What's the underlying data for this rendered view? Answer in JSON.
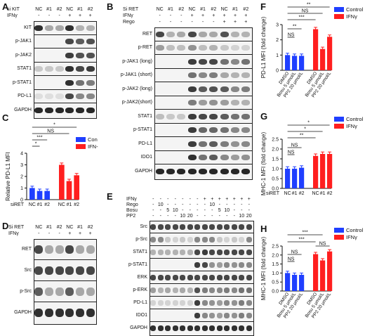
{
  "panels": {
    "A": {
      "letter": "A",
      "row1": [
        "si KIT",
        "NC",
        "#1",
        "#2",
        "NC",
        "#1",
        "#2"
      ],
      "row2": [
        "IFNγ",
        "-",
        "-",
        "-",
        "+",
        "+",
        "+"
      ],
      "blots": [
        "KIT",
        "p-JAK1",
        "p-JAK2",
        "STAT1",
        "p-STAT1",
        "PD-L1",
        "GAPDH"
      ]
    },
    "B": {
      "letter": "B",
      "row1": [
        "Si RET",
        "NC",
        "#1",
        "#2",
        "NC",
        "#1",
        "#2",
        "NC",
        "#1",
        "#2"
      ],
      "row2": [
        "IFNγ",
        "-",
        "-",
        "-",
        "+",
        "+",
        "+",
        "+",
        "+",
        "+"
      ],
      "row3": [
        "Rego",
        "-",
        "-",
        "-",
        "-",
        "-",
        "-",
        "+",
        "+",
        "+"
      ],
      "blots": [
        "RET",
        "p-RET",
        "p-JAK1 (long)",
        "p-JAK1 (short)",
        "p-JAK2 (long)",
        "p-JAK2(short)",
        "STAT1",
        "p-STAT1",
        "PD-L1",
        "IDO1",
        "GAPDH"
      ]
    },
    "C": {
      "letter": "C"
    },
    "D": {
      "letter": "D",
      "row1": [
        "Si RET",
        "NC",
        "#1",
        "#2",
        "NC",
        "#1",
        "#2"
      ],
      "row2": [
        "IFNγ",
        "-",
        "-",
        "-",
        "+",
        "+",
        "+"
      ],
      "blots": [
        "RET",
        "Src",
        "p-Src",
        "GAPDH"
      ]
    },
    "E": {
      "letter": "E",
      "row1": [
        "IFNγ",
        "-",
        "-",
        "-",
        "-",
        "-",
        "-",
        "-",
        "+",
        "+",
        "+",
        "+",
        "+",
        "+",
        "+"
      ],
      "row2": [
        "Rego",
        "-",
        "10",
        "-",
        "-",
        "-",
        "-",
        "-",
        "-",
        "10",
        "-",
        "-",
        "-",
        "-",
        "-"
      ],
      "row3": [
        "Bosu",
        "-",
        "-",
        "5",
        "10",
        "-",
        "-",
        "-",
        "-",
        "-",
        "5",
        "10",
        "-",
        "-",
        "-"
      ],
      "row4": [
        "PP2",
        "-",
        "-",
        "-",
        "-",
        "10",
        "20",
        "-",
        "-",
        "-",
        "-",
        "-",
        "-",
        "10",
        "20"
      ],
      "blots": [
        "Src",
        "p-Src",
        "STAT1",
        "p-STAT1",
        "ERK",
        "p-ERK",
        "PD-L1",
        "IDO1",
        "GAPDH"
      ]
    },
    "F": {
      "letter": "F"
    },
    "G": {
      "letter": "G"
    },
    "H": {
      "letter": "H"
    }
  },
  "chart_data": [
    {
      "panel": "C",
      "type": "bar",
      "ylabel": "Relative PD-L1 MFI",
      "xlabel": "siRET",
      "groups": [
        "NC",
        "#1",
        "#2",
        "NC",
        "#1",
        "#2"
      ],
      "series": [
        {
          "name": "Con",
          "color": "#1f3fff",
          "values": [
            1.0,
            0.75,
            0.75
          ]
        },
        {
          "name": "IFN-",
          "color": "#ff1f1f",
          "values": [
            3.0,
            1.6,
            2.1
          ]
        }
      ],
      "ylim": [
        0,
        4
      ],
      "yticks": [
        "0",
        "1",
        "2",
        "3",
        "4"
      ],
      "significance": [
        "*",
        "***",
        "NS",
        "*"
      ]
    },
    {
      "panel": "F",
      "type": "bar",
      "ylabel": "PD-L1 MFI (fold change)",
      "groups": [
        "DMSO",
        "Bosu 5 μmol/L",
        "PP2 20 μmol/L",
        "DMSO",
        "Bosu 5 μmol/L",
        "PP2 20 μmol/L"
      ],
      "series": [
        {
          "name": "Control",
          "color": "#1f3fff",
          "values": [
            1.0,
            0.95,
            0.95
          ]
        },
        {
          "name": "IFNγ",
          "color": "#ff1f1f",
          "values": [
            2.7,
            1.4,
            2.2
          ]
        }
      ],
      "ylim": [
        0,
        3
      ],
      "yticks": [
        "0",
        "1",
        "2",
        "3"
      ],
      "significance": [
        "NS",
        "**",
        "***",
        "NS",
        "**"
      ]
    },
    {
      "panel": "G",
      "type": "bar",
      "ylabel": "MHC-1 MFI (fold change)",
      "xlabel": "siRET",
      "groups": [
        "NC",
        "#1",
        "#2",
        "NC",
        "#1",
        "#2"
      ],
      "series": [
        {
          "name": "Control",
          "color": "#1f3fff",
          "values": [
            1.0,
            1.0,
            1.05
          ]
        },
        {
          "name": "IFNγ",
          "color": "#ff1f1f",
          "values": [
            1.65,
            1.75,
            1.75
          ]
        }
      ],
      "ylim": [
        0,
        2.5
      ],
      "yticks": [
        "0.0",
        "0.5",
        "1.0",
        "1.5",
        "2.0",
        "2.5"
      ],
      "significance": [
        "NS",
        "NS",
        "**",
        "*",
        "*"
      ]
    },
    {
      "panel": "H",
      "type": "bar",
      "ylabel": "MHC-1 MFI (fold change)",
      "groups": [
        "DMSO",
        "Bosu 5 μmol/L",
        "PP2 20 μmol/L",
        "DMSO",
        "Bosu 5 μmol/L",
        "PP2 20 μmol/L"
      ],
      "series": [
        {
          "name": "Control",
          "color": "#1f3fff",
          "values": [
            1.0,
            0.9,
            0.9
          ]
        },
        {
          "name": "IFNγ",
          "color": "#ff1f1f",
          "values": [
            2.05,
            1.7,
            2.2
          ]
        }
      ],
      "ylim": [
        0,
        2.5
      ],
      "yticks": [
        "0.0",
        "0.5",
        "1.0",
        "1.5",
        "2.0",
        "2.5"
      ],
      "significance": [
        "NS",
        "NS",
        "***",
        "***",
        "NS"
      ]
    }
  ]
}
